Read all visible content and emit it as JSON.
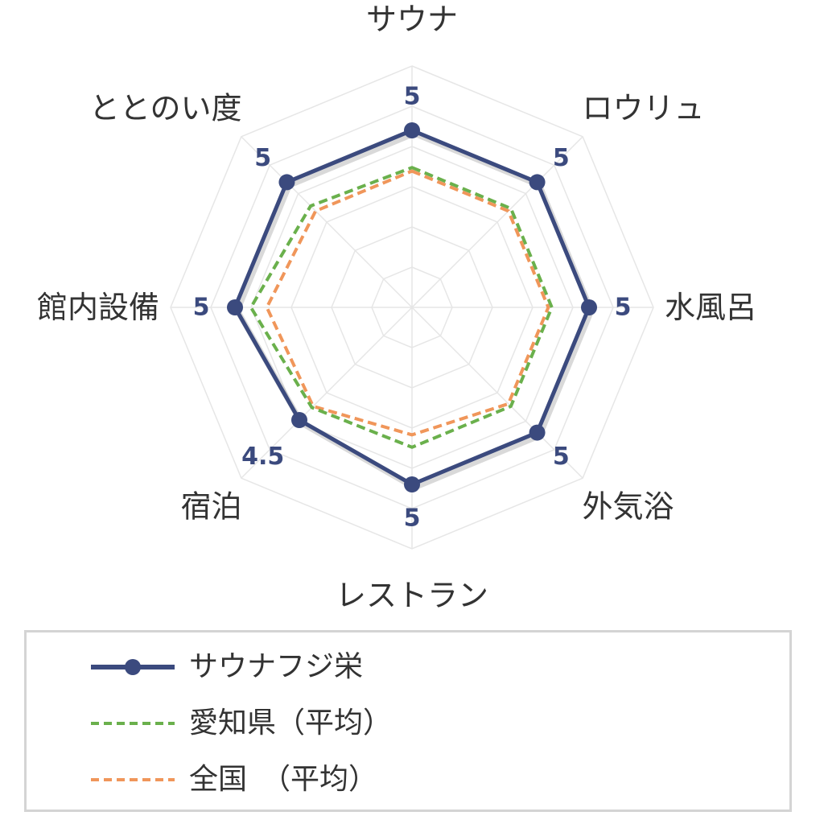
{
  "chart_data": {
    "type": "radar",
    "axes": [
      "サウナ",
      "ロウリュ",
      "水風呂",
      "外気浴",
      "レストラン",
      "宿泊",
      "館内設備",
      "ととのい度"
    ],
    "rmax": 5,
    "series": [
      {
        "name": "サウナフジ栄",
        "values": [
          5,
          5,
          5,
          5,
          5,
          4.5,
          5,
          5
        ],
        "color": "#3b4a7e",
        "style": "solid",
        "markers": true
      },
      {
        "name": "愛知県（平均）",
        "values": [
          3.95,
          3.95,
          3.95,
          3.95,
          3.95,
          4.0,
          4.55,
          4.05
        ],
        "color": "#6ab04c",
        "style": "dashed",
        "markers": false
      },
      {
        "name": "全国　（平均）",
        "values": [
          3.85,
          3.85,
          3.85,
          3.85,
          3.6,
          3.95,
          4.1,
          3.85
        ],
        "color": "#f0965a",
        "style": "dashed",
        "markers": false
      }
    ],
    "value_labels": [
      "5",
      "5",
      "5",
      "5",
      "5",
      "4.5",
      "5",
      "5"
    ],
    "grid": true,
    "legend_position": "bottom"
  },
  "legend": {
    "items": [
      "サウナフジ栄",
      "愛知県（平均）",
      "全国　（平均）"
    ]
  }
}
